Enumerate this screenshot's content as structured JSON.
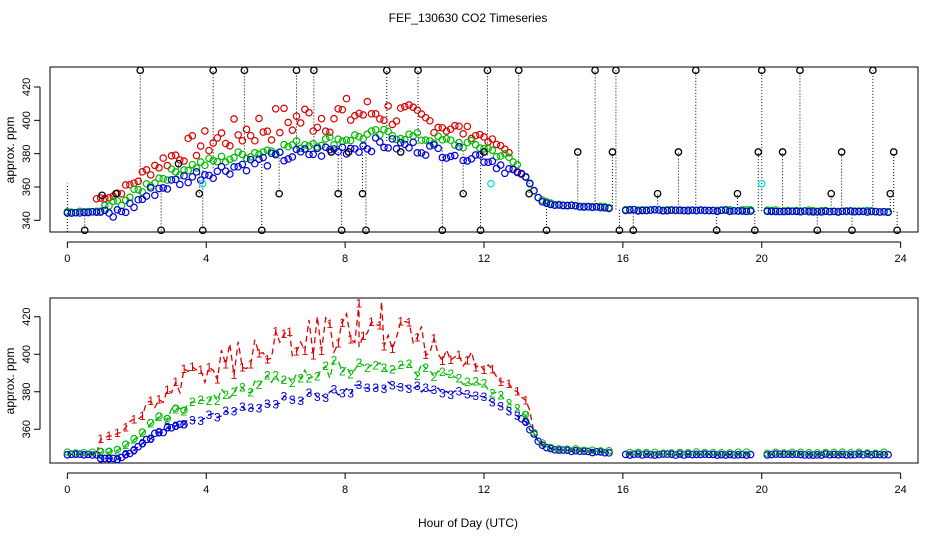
{
  "chart_data": [
    {
      "type": "scatter",
      "title": "FEF_130630  CO2 Timeseries",
      "xlabel": "",
      "ylabel": "approx. ppm",
      "xlim": [
        -0.5,
        24.5
      ],
      "ylim": [
        333,
        432
      ],
      "xticks": [
        0,
        4,
        8,
        12,
        16,
        20,
        24
      ],
      "yticks": [
        340,
        360,
        380,
        400,
        420
      ],
      "series": [
        {
          "name": "black",
          "color": "#000000",
          "role": "spike-markers"
        },
        {
          "name": "red",
          "color": "#dd0000",
          "role": "open-circles"
        },
        {
          "name": "green",
          "color": "#00bb00",
          "role": "open-circles"
        },
        {
          "name": "blue",
          "color": "#0000dd",
          "role": "open-circles"
        },
        {
          "name": "cyan",
          "color": "#00dddd",
          "role": "open-circles"
        }
      ],
      "black_x": [
        0.5,
        1.0,
        1.4,
        2.1,
        2.7,
        3.2,
        3.8,
        3.9,
        4.2,
        5.1,
        5.6,
        6.1,
        6.6,
        7.1,
        7.6,
        7.8,
        7.9,
        8.1,
        8.5,
        8.6,
        9.2,
        9.6,
        10.1,
        10.8,
        11.4,
        11.9,
        12.0,
        12.1,
        13.0,
        13.3,
        13.8,
        14.7,
        15.2,
        15.7,
        15.8,
        15.9,
        16.3,
        17.0,
        17.6,
        18.1,
        18.7,
        19.3,
        19.8,
        19.9,
        20.0,
        20.6,
        21.1,
        21.6,
        22.0,
        22.3,
        22.6,
        23.2,
        23.7,
        23.8,
        23.9
      ],
      "black_y": [
        334,
        355,
        356,
        430,
        334,
        374,
        356,
        334,
        430,
        430,
        334,
        356,
        430,
        430,
        381,
        356,
        334,
        381,
        356,
        334,
        430,
        381,
        430,
        334,
        356,
        334,
        381,
        430,
        430,
        356,
        334,
        381,
        430,
        381,
        430,
        334,
        334,
        356,
        381,
        430,
        334,
        356,
        334,
        381,
        430,
        381,
        430,
        334,
        356,
        381,
        334,
        430,
        356,
        381,
        334
      ],
      "cyan_x": [
        3.9,
        12.2,
        20.0
      ],
      "cyan_y": [
        362,
        362,
        362
      ]
    },
    {
      "type": "scatter",
      "title": "",
      "xlabel": "Hour of Day (UTC)",
      "ylabel": "approx. ppm",
      "xlim": [
        -0.5,
        24.5
      ],
      "ylim": [
        342,
        430
      ],
      "xticks": [
        0,
        4,
        8,
        12,
        16,
        20,
        24
      ],
      "yticks": [
        360,
        380,
        400,
        420
      ],
      "series": [
        {
          "name": "1",
          "color": "#dd0000",
          "marker": "1"
        },
        {
          "name": "2",
          "color": "#00bb00",
          "marker": "2"
        },
        {
          "name": "3",
          "color": "#0000dd",
          "marker": "3"
        }
      ]
    }
  ]
}
